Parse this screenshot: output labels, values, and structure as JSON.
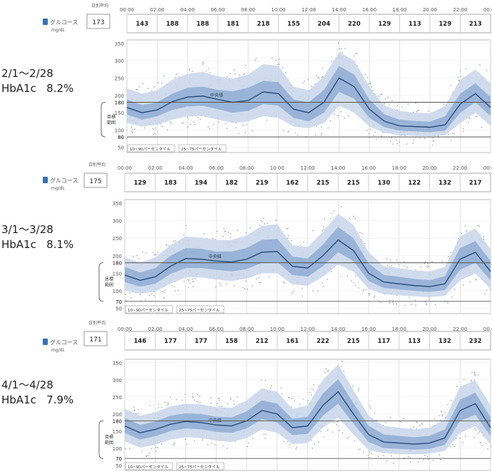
{
  "labels": {
    "glucose": "グルコース",
    "unit": "mg/dL",
    "daily_avg": "日別平均",
    "target_range": "目標範囲",
    "median": "中央値",
    "band_outer": "10~90パーセンタイル",
    "band_inner": "25~75パーセンタイル"
  },
  "hour_ticks": [
    "00:00",
    "02:00",
    "04:00",
    "06:00",
    "08:00",
    "10:00",
    "12:00",
    "14:00",
    "16:00",
    "18:00",
    "20:00",
    "22:00",
    "00:00"
  ],
  "colors": {
    "outer_band": "#c8d6ea",
    "inner_band": "#8fadd3",
    "median": "#2a4c7a",
    "dots": "#9a9a9a",
    "grid": "#d9d9d9",
    "ref": "#555555"
  },
  "chart_data": [
    {
      "type": "area",
      "period": "2/1～2/28",
      "hba1c_label": "HbA1c",
      "hba1c": "8.2%",
      "daily_average": "173",
      "hourly_averages": [
        "143",
        "188",
        "188",
        "181",
        "218",
        "155",
        "204",
        "220",
        "129",
        "113",
        "129",
        "213"
      ],
      "y_ticks": [
        "350",
        "300",
        "250",
        "200",
        "180",
        "150",
        "100",
        "80",
        "50"
      ],
      "target_low": 80,
      "target_high": 180,
      "ylim": [
        0,
        350
      ],
      "x": [
        0,
        1,
        2,
        3,
        4,
        5,
        6,
        7,
        8,
        9,
        10,
        11,
        12,
        13,
        14,
        15,
        16,
        17,
        18,
        19,
        20,
        21,
        22,
        23,
        24
      ],
      "median": [
        165,
        150,
        158,
        182,
        195,
        198,
        188,
        180,
        185,
        210,
        205,
        160,
        150,
        180,
        250,
        225,
        160,
        125,
        112,
        110,
        108,
        115,
        175,
        205,
        165
      ],
      "p25_75": [
        [
          145,
          188
        ],
        [
          130,
          172
        ],
        [
          140,
          180
        ],
        [
          158,
          205
        ],
        [
          168,
          222
        ],
        [
          170,
          225
        ],
        [
          160,
          216
        ],
        [
          150,
          212
        ],
        [
          155,
          222
        ],
        [
          175,
          242
        ],
        [
          170,
          238
        ],
        [
          135,
          188
        ],
        [
          125,
          180
        ],
        [
          150,
          215
        ],
        [
          210,
          285
        ],
        [
          190,
          260
        ],
        [
          135,
          188
        ],
        [
          108,
          145
        ],
        [
          98,
          130
        ],
        [
          96,
          126
        ],
        [
          94,
          124
        ],
        [
          98,
          140
        ],
        [
          150,
          205
        ],
        [
          180,
          235
        ],
        [
          140,
          195
        ]
      ],
      "p10_90": [
        [
          120,
          220
        ],
        [
          110,
          205
        ],
        [
          115,
          215
        ],
        [
          130,
          245
        ],
        [
          140,
          262
        ],
        [
          140,
          268
        ],
        [
          130,
          255
        ],
        [
          120,
          248
        ],
        [
          125,
          260
        ],
        [
          140,
          290
        ],
        [
          135,
          285
        ],
        [
          110,
          225
        ],
        [
          105,
          215
        ],
        [
          120,
          255
        ],
        [
          170,
          325
        ],
        [
          150,
          300
        ],
        [
          110,
          225
        ],
        [
          92,
          170
        ],
        [
          85,
          155
        ],
        [
          83,
          150
        ],
        [
          82,
          148
        ],
        [
          85,
          170
        ],
        [
          120,
          245
        ],
        [
          150,
          275
        ],
        [
          112,
          235
        ]
      ]
    },
    {
      "type": "area",
      "period": "3/1～3/28",
      "hba1c_label": "HbA1c",
      "hba1c": "8.1%",
      "daily_average": "175",
      "hourly_averages": [
        "129",
        "183",
        "194",
        "182",
        "219",
        "162",
        "215",
        "215",
        "130",
        "122",
        "132",
        "217"
      ],
      "y_ticks": [
        "350",
        "300",
        "250",
        "200",
        "180",
        "150",
        "100",
        "70",
        "50"
      ],
      "target_low": 70,
      "target_high": 180,
      "ylim": [
        0,
        350
      ],
      "x": [
        0,
        1,
        2,
        3,
        4,
        5,
        6,
        7,
        8,
        9,
        10,
        11,
        12,
        13,
        14,
        15,
        16,
        17,
        18,
        19,
        20,
        21,
        22,
        23,
        24
      ],
      "median": [
        145,
        130,
        140,
        170,
        192,
        190,
        185,
        182,
        190,
        210,
        212,
        170,
        165,
        200,
        245,
        215,
        150,
        125,
        120,
        115,
        112,
        120,
        190,
        210,
        155
      ],
      "p25_75": [
        [
          125,
          168
        ],
        [
          112,
          152
        ],
        [
          120,
          165
        ],
        [
          148,
          200
        ],
        [
          165,
          222
        ],
        [
          165,
          220
        ],
        [
          160,
          212
        ],
        [
          155,
          212
        ],
        [
          162,
          222
        ],
        [
          180,
          245
        ],
        [
          182,
          248
        ],
        [
          145,
          198
        ],
        [
          140,
          192
        ],
        [
          170,
          232
        ],
        [
          210,
          282
        ],
        [
          185,
          250
        ],
        [
          128,
          178
        ],
        [
          108,
          145
        ],
        [
          104,
          140
        ],
        [
          100,
          134
        ],
        [
          97,
          130
        ],
        [
          102,
          142
        ],
        [
          160,
          222
        ],
        [
          180,
          242
        ],
        [
          130,
          185
        ]
      ],
      "p10_90": [
        [
          100,
          195
        ],
        [
          92,
          180
        ],
        [
          98,
          195
        ],
        [
          120,
          230
        ],
        [
          138,
          255
        ],
        [
          138,
          252
        ],
        [
          132,
          245
        ],
        [
          128,
          245
        ],
        [
          135,
          258
        ],
        [
          150,
          285
        ],
        [
          150,
          290
        ],
        [
          118,
          230
        ],
        [
          115,
          225
        ],
        [
          140,
          268
        ],
        [
          175,
          320
        ],
        [
          155,
          288
        ],
        [
          105,
          210
        ],
        [
          90,
          170
        ],
        [
          87,
          165
        ],
        [
          84,
          158
        ],
        [
          82,
          155
        ],
        [
          86,
          168
        ],
        [
          130,
          255
        ],
        [
          150,
          278
        ],
        [
          105,
          218
        ]
      ]
    },
    {
      "type": "area",
      "period": "4/1～4/28",
      "hba1c_label": "HbA1c",
      "hba1c": "7.9%",
      "daily_average": "171",
      "hourly_averages": [
        "146",
        "177",
        "177",
        "158",
        "212",
        "161",
        "222",
        "215",
        "117",
        "113",
        "132",
        "232"
      ],
      "y_ticks": [
        "350",
        "300",
        "250",
        "200",
        "180",
        "150",
        "100",
        "70",
        "50"
      ],
      "target_low": 70,
      "target_high": 180,
      "ylim": [
        0,
        350
      ],
      "x": [
        0,
        1,
        2,
        3,
        4,
        5,
        6,
        7,
        8,
        9,
        10,
        11,
        12,
        13,
        14,
        15,
        16,
        17,
        18,
        19,
        20,
        21,
        22,
        23,
        24
      ],
      "median": [
        165,
        145,
        155,
        170,
        178,
        175,
        168,
        165,
        180,
        210,
        200,
        160,
        165,
        225,
        265,
        200,
        140,
        118,
        115,
        112,
        115,
        130,
        210,
        230,
        160
      ],
      "p25_75": [
        [
          145,
          188
        ],
        [
          125,
          168
        ],
        [
          135,
          178
        ],
        [
          150,
          195
        ],
        [
          158,
          202
        ],
        [
          155,
          200
        ],
        [
          148,
          192
        ],
        [
          145,
          190
        ],
        [
          158,
          208
        ],
        [
          185,
          240
        ],
        [
          175,
          230
        ],
        [
          138,
          186
        ],
        [
          142,
          192
        ],
        [
          195,
          260
        ],
        [
          230,
          302
        ],
        [
          172,
          232
        ],
        [
          118,
          165
        ],
        [
          100,
          140
        ],
        [
          98,
          136
        ],
        [
          96,
          132
        ],
        [
          98,
          136
        ],
        [
          110,
          155
        ],
        [
          180,
          242
        ],
        [
          198,
          262
        ],
        [
          135,
          190
        ]
      ],
      "p10_90": [
        [
          120,
          215
        ],
        [
          102,
          195
        ],
        [
          110,
          205
        ],
        [
          125,
          222
        ],
        [
          132,
          230
        ],
        [
          130,
          228
        ],
        [
          122,
          220
        ],
        [
          118,
          218
        ],
        [
          130,
          240
        ],
        [
          155,
          275
        ],
        [
          145,
          265
        ],
        [
          112,
          215
        ],
        [
          115,
          225
        ],
        [
          160,
          300
        ],
        [
          190,
          345
        ],
        [
          140,
          270
        ],
        [
          95,
          195
        ],
        [
          85,
          165
        ],
        [
          83,
          160
        ],
        [
          82,
          155
        ],
        [
          84,
          160
        ],
        [
          92,
          185
        ],
        [
          145,
          280
        ],
        [
          165,
          298
        ],
        [
          110,
          225
        ]
      ]
    }
  ]
}
